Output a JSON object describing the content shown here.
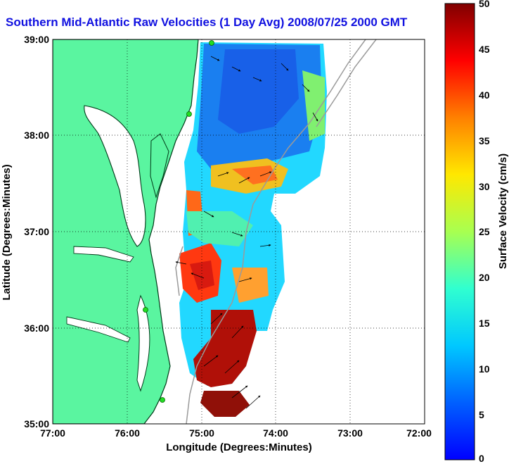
{
  "title": "Southern Mid-Atlantic Raw Velocities (1 Day Avg) 2008/07/25 2000 GMT",
  "axes": {
    "xlabel": "Longitude (Degrees:Minutes)",
    "ylabel": "Latitude (Degrees:Minutes)",
    "xticks": [
      "77:00",
      "76:00",
      "75:00",
      "74:00",
      "73:00",
      "72:00"
    ],
    "yticks": [
      "39:00",
      "38:00",
      "37:00",
      "36:00",
      "35:00"
    ]
  },
  "colorbar": {
    "label": "Surface Velocity (cm/s)",
    "ticks": [
      "50",
      "45",
      "40",
      "35",
      "30",
      "25",
      "20",
      "15",
      "10",
      "5",
      "0"
    ],
    "range": [
      0,
      50
    ]
  },
  "colors": {
    "land": "#5af5a0",
    "coastline": "#003a18",
    "title": "#1010e0",
    "station": "#22dd22",
    "bathymetry": "#9a9a9a"
  },
  "map_extent": {
    "lon_min": -77,
    "lon_max": -72,
    "lat_min": 35,
    "lat_max": 39
  }
}
